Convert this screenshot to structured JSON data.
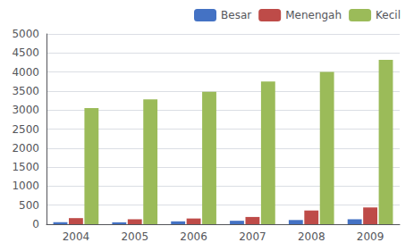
{
  "chart_data": {
    "type": "bar",
    "categories": [
      "2004",
      "2005",
      "2006",
      "2007",
      "2008",
      "2009"
    ],
    "series": [
      {
        "name": "Besar",
        "color": "#4472C4",
        "values": [
          50,
          50,
          75,
          90,
          110,
          130
        ]
      },
      {
        "name": "Menengah",
        "color": "#BE4B48",
        "values": [
          160,
          130,
          150,
          190,
          360,
          440
        ]
      },
      {
        "name": "Kecil",
        "color": "#9BBB59",
        "values": [
          3050,
          3280,
          3480,
          3750,
          4000,
          4320
        ]
      }
    ],
    "ylim": [
      0,
      5000
    ],
    "yticks": [
      0,
      500,
      1000,
      1500,
      2000,
      2500,
      3000,
      3500,
      4000,
      4500,
      5000
    ],
    "grid": true,
    "legend": "upper right"
  }
}
